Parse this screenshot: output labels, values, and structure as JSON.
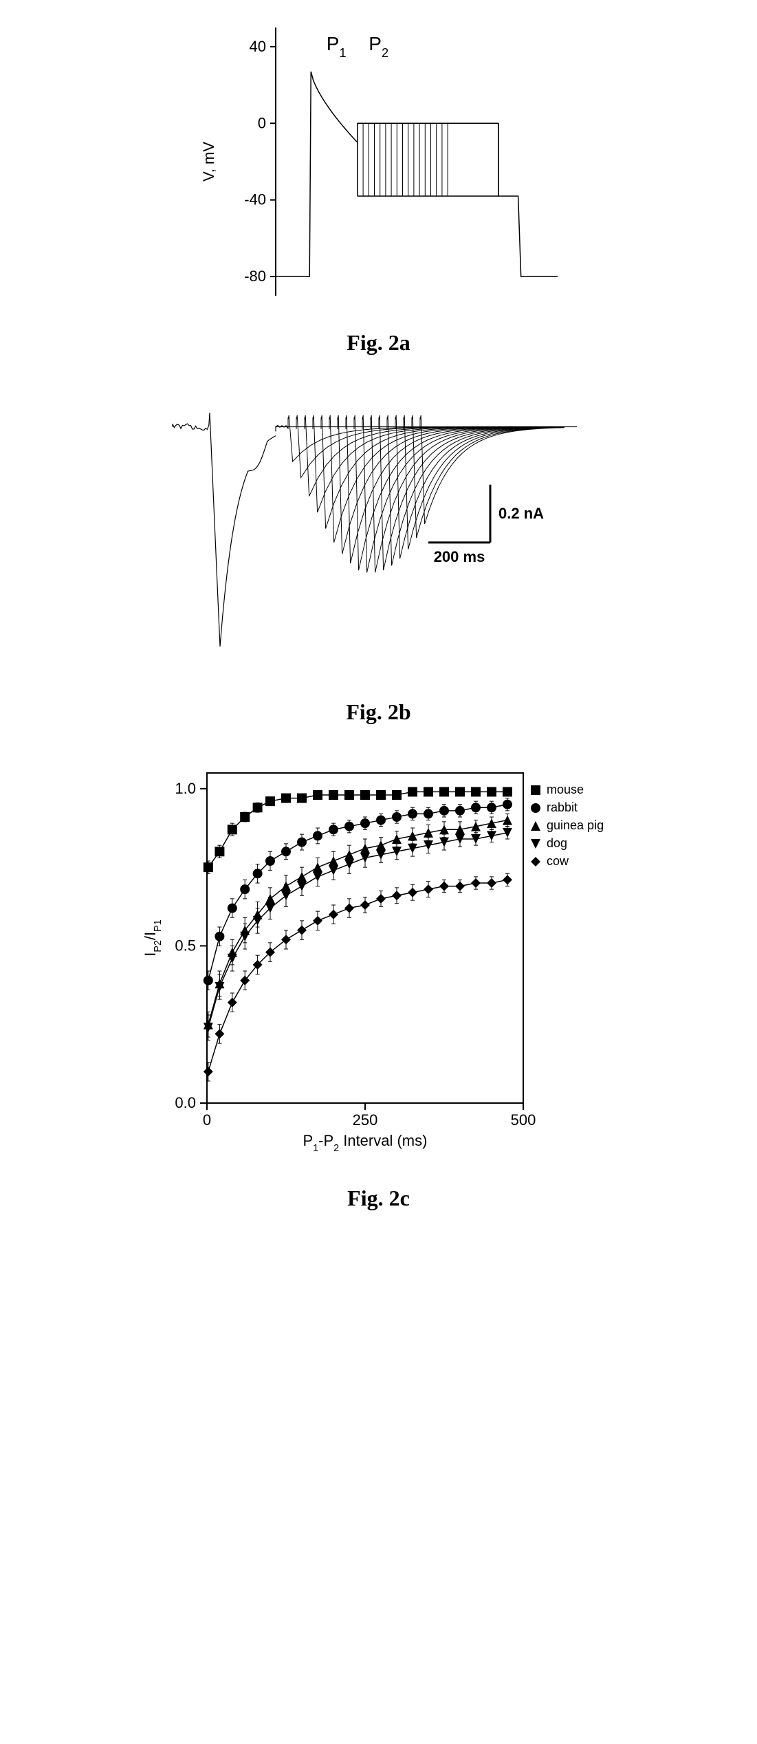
{
  "figA": {
    "caption": "Fig. 2a",
    "yAxisLabel": "V, mV",
    "yTicks": [
      -80,
      -40,
      0,
      40
    ],
    "labels": {
      "p1": "P",
      "p1sub": "1",
      "p2": "P",
      "p2sub": "2"
    },
    "yRange": [
      -90,
      50
    ],
    "xRange": [
      0,
      1000
    ],
    "protocol": {
      "baseline": -80,
      "p1StartX": 120,
      "p1Peak": 27,
      "p1DecayToX": 290,
      "p1DecayToV": -10,
      "pulseLow": -38,
      "pulseHigh": 0,
      "pulseStartXs": [
        290,
        310,
        330,
        350,
        370,
        390,
        410,
        430,
        450,
        470,
        490,
        510,
        530,
        550,
        570,
        590,
        610
      ],
      "pulseEndX": 790,
      "postStepV": -38,
      "postStepEndX": 860,
      "returnX": 870
    },
    "colors": {
      "axis": "#000000",
      "trace": "#000000",
      "bg": "#ffffff"
    },
    "styling": {
      "axisStroke": 2,
      "traceStroke": 1.5,
      "tickLen": 8,
      "fontSize": 22,
      "labelFontSize": 28
    }
  },
  "figB": {
    "caption": "Fig. 2b",
    "scaleBarY": "0.2 nA",
    "scaleBarX": "200 ms",
    "xRange": [
      0,
      1000
    ],
    "yRange": [
      -1.0,
      0.1
    ],
    "p1": {
      "startX": 90,
      "peakX": 115,
      "peakY": -0.95,
      "recoverX": 250,
      "recoverY": -0.02,
      "humpX": 210,
      "humpY": -0.09
    },
    "p2Set": {
      "startXs": [
        280,
        300,
        320,
        340,
        360,
        380,
        400,
        420,
        440,
        460,
        480,
        500,
        520,
        540,
        560,
        580,
        600
      ],
      "peakYs": [
        -0.15,
        -0.22,
        -0.3,
        -0.37,
        -0.44,
        -0.5,
        -0.55,
        -0.59,
        -0.62,
        -0.63,
        -0.63,
        -0.62,
        -0.6,
        -0.57,
        -0.53,
        -0.48,
        -0.42
      ],
      "width": 22,
      "decayTau": 70
    },
    "baselineY": 0.0,
    "noiseAmp": 0.015,
    "scaleBar": {
      "x": 770,
      "yTop": -0.25,
      "yBottom": -0.5,
      "xLeft": 620,
      "xRight": 770
    },
    "colors": {
      "trace": "#000000",
      "bg": "#ffffff"
    },
    "styling": {
      "traceStroke": 1.2,
      "scaleBarStroke": 3,
      "fontSize": 22
    }
  },
  "figC": {
    "caption": "Fig. 2c",
    "xAxisLabel": "P",
    "xAxisLabelSub1": "1",
    "xAxisLabelMid": "-P",
    "xAxisLabelSub2": "2",
    "xAxisLabelEnd": " Interval (ms)",
    "yAxisLabel": "I",
    "yAxisLabelSub1": "P2",
    "yAxisLabelMid": "/I",
    "yAxisLabelSub2": "P1",
    "xTicks": [
      0,
      250,
      500
    ],
    "yTicks": [
      0.0,
      0.5,
      1.0
    ],
    "xRange": [
      0,
      500
    ],
    "yRange": [
      0.0,
      1.05
    ],
    "legend": [
      {
        "name": "mouse",
        "marker": "square-filled"
      },
      {
        "name": "rabbit",
        "marker": "circle-filled"
      },
      {
        "name": "guinea pig",
        "marker": "triangle-up-filled"
      },
      {
        "name": "dog",
        "marker": "triangle-down-filled"
      },
      {
        "name": "cow",
        "marker": "diamond-filled"
      }
    ],
    "series": {
      "mouse": {
        "marker": "square-filled",
        "x": [
          2,
          20,
          40,
          60,
          80,
          100,
          125,
          150,
          175,
          200,
          225,
          250,
          275,
          300,
          325,
          350,
          375,
          400,
          425,
          450,
          475
        ],
        "y": [
          0.75,
          0.8,
          0.87,
          0.91,
          0.94,
          0.96,
          0.97,
          0.97,
          0.98,
          0.98,
          0.98,
          0.98,
          0.98,
          0.98,
          0.99,
          0.99,
          0.99,
          0.99,
          0.99,
          0.99,
          0.99
        ],
        "err": [
          0.02,
          0.02,
          0.02,
          0.015,
          0.015,
          0.01,
          0.01,
          0.01,
          0.01,
          0.01,
          0.01,
          0.01,
          0.01,
          0.01,
          0.01,
          0.01,
          0.01,
          0.01,
          0.01,
          0.01,
          0.01
        ]
      },
      "rabbit": {
        "marker": "circle-filled",
        "x": [
          2,
          20,
          40,
          60,
          80,
          100,
          125,
          150,
          175,
          200,
          225,
          250,
          275,
          300,
          325,
          350,
          375,
          400,
          425,
          450,
          475
        ],
        "y": [
          0.39,
          0.53,
          0.62,
          0.68,
          0.73,
          0.77,
          0.8,
          0.83,
          0.85,
          0.87,
          0.88,
          0.89,
          0.9,
          0.91,
          0.92,
          0.92,
          0.93,
          0.93,
          0.94,
          0.94,
          0.95
        ],
        "err": [
          0.03,
          0.03,
          0.03,
          0.03,
          0.03,
          0.03,
          0.025,
          0.025,
          0.025,
          0.02,
          0.02,
          0.02,
          0.02,
          0.02,
          0.02,
          0.02,
          0.02,
          0.02,
          0.02,
          0.02,
          0.02
        ]
      },
      "guinea_pig": {
        "marker": "triangle-up-filled",
        "x": [
          2,
          20,
          40,
          60,
          80,
          100,
          125,
          150,
          175,
          200,
          225,
          250,
          275,
          300,
          325,
          350,
          375,
          400,
          425,
          450,
          475
        ],
        "y": [
          0.25,
          0.38,
          0.48,
          0.55,
          0.6,
          0.65,
          0.69,
          0.72,
          0.75,
          0.77,
          0.79,
          0.81,
          0.82,
          0.84,
          0.85,
          0.86,
          0.87,
          0.87,
          0.88,
          0.89,
          0.9
        ],
        "err": [
          0.04,
          0.04,
          0.04,
          0.04,
          0.04,
          0.035,
          0.035,
          0.03,
          0.03,
          0.03,
          0.03,
          0.03,
          0.025,
          0.025,
          0.025,
          0.025,
          0.025,
          0.025,
          0.02,
          0.02,
          0.02
        ]
      },
      "dog": {
        "marker": "triangle-down-filled",
        "x": [
          2,
          20,
          40,
          60,
          80,
          100,
          125,
          150,
          175,
          200,
          225,
          250,
          275,
          300,
          325,
          350,
          375,
          400,
          425,
          450,
          475
        ],
        "y": [
          0.24,
          0.37,
          0.46,
          0.53,
          0.58,
          0.62,
          0.66,
          0.69,
          0.72,
          0.74,
          0.76,
          0.78,
          0.79,
          0.8,
          0.81,
          0.82,
          0.83,
          0.84,
          0.84,
          0.85,
          0.86
        ],
        "err": [
          0.04,
          0.04,
          0.04,
          0.04,
          0.04,
          0.035,
          0.035,
          0.03,
          0.03,
          0.03,
          0.03,
          0.03,
          0.025,
          0.025,
          0.025,
          0.025,
          0.025,
          0.025,
          0.02,
          0.02,
          0.02
        ]
      },
      "cow": {
        "marker": "diamond-filled",
        "x": [
          2,
          20,
          40,
          60,
          80,
          100,
          125,
          150,
          175,
          200,
          225,
          250,
          275,
          300,
          325,
          350,
          375,
          400,
          425,
          450,
          475
        ],
        "y": [
          0.1,
          0.22,
          0.32,
          0.39,
          0.44,
          0.48,
          0.52,
          0.55,
          0.58,
          0.6,
          0.62,
          0.63,
          0.65,
          0.66,
          0.67,
          0.68,
          0.69,
          0.69,
          0.7,
          0.7,
          0.71
        ],
        "err": [
          0.03,
          0.03,
          0.03,
          0.03,
          0.03,
          0.03,
          0.03,
          0.03,
          0.03,
          0.03,
          0.03,
          0.025,
          0.025,
          0.025,
          0.025,
          0.025,
          0.02,
          0.02,
          0.02,
          0.02,
          0.02
        ]
      }
    },
    "colors": {
      "axis": "#000000",
      "marker": "#000000",
      "line": "#000000",
      "bg": "#ffffff"
    },
    "styling": {
      "axisStroke": 2,
      "traceStroke": 1.5,
      "markerSize": 7,
      "tickLen": 10,
      "fontSize": 22,
      "legendFontSize": 18
    }
  }
}
